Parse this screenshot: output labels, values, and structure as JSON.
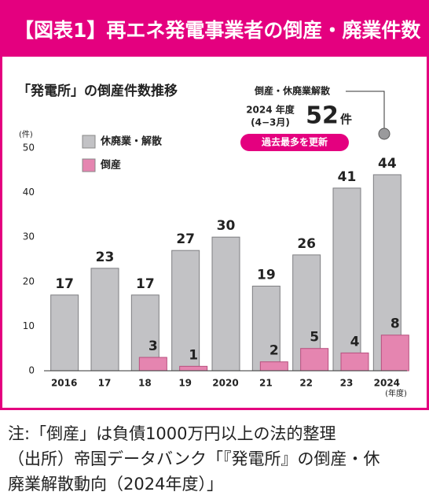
{
  "chart_data": {
    "type": "bar",
    "header": "【図表1】再エネ発電事業者の倒産・廃業件数",
    "title": "「発電所」の倒産件数推移",
    "y_label": "(件)",
    "x_label": "(年度)",
    "categories": [
      "2016",
      "17",
      "18",
      "19",
      "2020",
      "21",
      "22",
      "23",
      "2024"
    ],
    "series": [
      {
        "name": "休廃業・解散",
        "color": "#c2c2c5",
        "values": [
          17,
          23,
          17,
          27,
          30,
          19,
          26,
          41,
          44
        ]
      },
      {
        "name": "倒産",
        "color": "#e585b0",
        "values": [
          null,
          null,
          3,
          1,
          null,
          2,
          5,
          4,
          8
        ]
      }
    ],
    "ylim": [
      0,
      50
    ],
    "yticks": [
      0,
      10,
      20,
      30,
      40,
      50
    ],
    "grid": false,
    "annotation": {
      "label": "倒産・休廃業解散",
      "period": "2024 年度",
      "months": "(4−3月)",
      "value": 52,
      "unit": "件",
      "badge": "過去最多を更新"
    },
    "notes": [
      "注:「倒産」は負債1000万円以上の法的整理",
      "（出所）帝国データバンク「『発電所』の倒産・休",
      "廃業解散動向（2024年度）」"
    ]
  }
}
